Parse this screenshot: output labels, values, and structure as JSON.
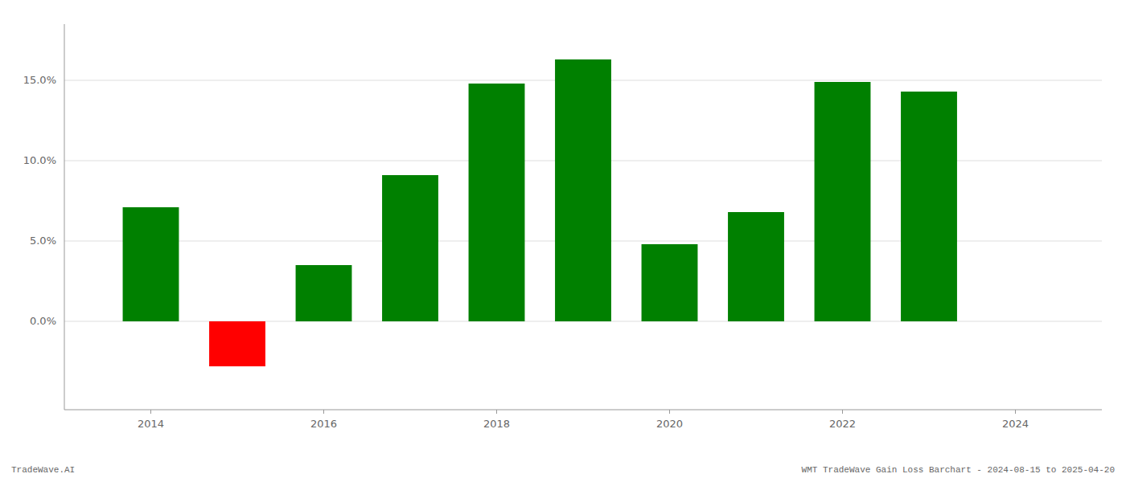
{
  "chart_data": {
    "type": "bar",
    "title": "WMT TradeWave Gain Loss Barchart - 2024-08-15 to 2025-04-20",
    "annotations": [
      "TradeWave.AI"
    ],
    "x": [
      2014,
      2015,
      2016,
      2017,
      2018,
      2019,
      2020,
      2021,
      2022,
      2023
    ],
    "values": [
      0.071,
      -0.028,
      0.035,
      0.091,
      0.148,
      0.163,
      0.048,
      0.068,
      0.149,
      0.143
    ],
    "colors": [
      "#008000",
      "#ff0000",
      "#008000",
      "#008000",
      "#008000",
      "#008000",
      "#008000",
      "#008000",
      "#008000",
      "#008000"
    ],
    "xlim": [
      2013.0,
      2025.0
    ],
    "xticks": [
      2014,
      2016,
      2018,
      2020,
      2022,
      2024
    ],
    "ylim": [
      -0.055,
      0.185
    ],
    "yticks": [
      {
        "value": 0.0,
        "label": "0.0%"
      },
      {
        "value": 0.05,
        "label": "5.0%"
      },
      {
        "value": 0.1,
        "label": "10.0%"
      },
      {
        "value": 0.15,
        "label": "15.0%"
      }
    ],
    "grid": true
  }
}
